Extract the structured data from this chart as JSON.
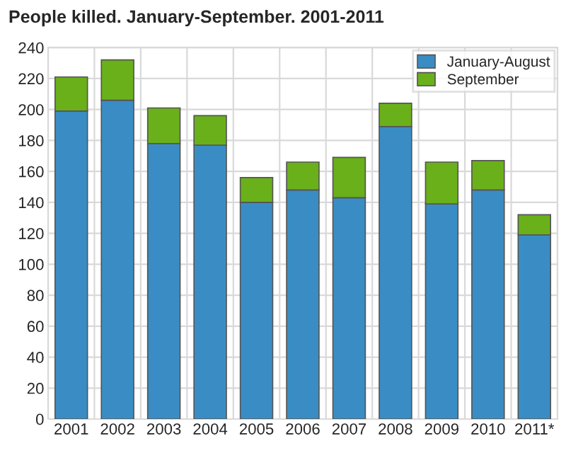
{
  "chart_data": {
    "type": "bar",
    "title": "People killed. January-September. 2001-2011",
    "categories": [
      "2001",
      "2002",
      "2003",
      "2004",
      "2005",
      "2006",
      "2007",
      "2008",
      "2009",
      "2010",
      "2011*"
    ],
    "stacked": true,
    "series": [
      {
        "name": "January-August",
        "color": "#3a8dc4",
        "values": [
          199,
          206,
          178,
          177,
          140,
          148,
          143,
          189,
          139,
          148,
          119
        ]
      },
      {
        "name": "September",
        "color": "#6ab01a",
        "values": [
          22,
          26,
          23,
          19,
          16,
          18,
          26,
          15,
          27,
          19,
          13
        ]
      }
    ],
    "ylim": [
      0,
      240
    ],
    "yticks": [
      0,
      20,
      40,
      60,
      80,
      100,
      120,
      140,
      160,
      180,
      200,
      220,
      240
    ],
    "grid": true,
    "legend": "top right"
  }
}
